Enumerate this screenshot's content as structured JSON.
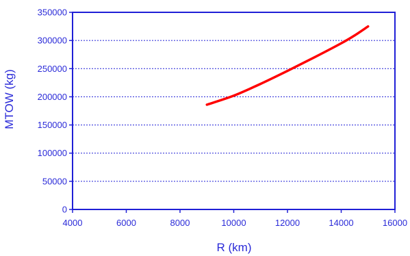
{
  "colors": {
    "axis": "#1f1fd6",
    "grid": "#1f1fd6",
    "text": "#2a2ad8",
    "series": "#ff0000",
    "background": "#ffffff"
  },
  "chart_data": {
    "type": "line",
    "title": "",
    "xlabel": "R (km)",
    "ylabel": "MTOW (kg)",
    "xlim": [
      4000,
      16000
    ],
    "ylim": [
      0,
      350000
    ],
    "x_ticks": [
      4000,
      6000,
      8000,
      10000,
      12000,
      14000,
      16000
    ],
    "y_ticks": [
      0,
      50000,
      100000,
      150000,
      200000,
      250000,
      300000,
      350000
    ],
    "grid": "horizontal dashed",
    "legend": "none",
    "series": [
      {
        "color": "#ff0000",
        "x": [
          9000,
          10000,
          11000,
          12000,
          13000,
          14000,
          14500,
          15000
        ],
        "y": [
          186000,
          202000,
          223000,
          246000,
          270000,
          295000,
          309000,
          325000
        ]
      }
    ]
  }
}
